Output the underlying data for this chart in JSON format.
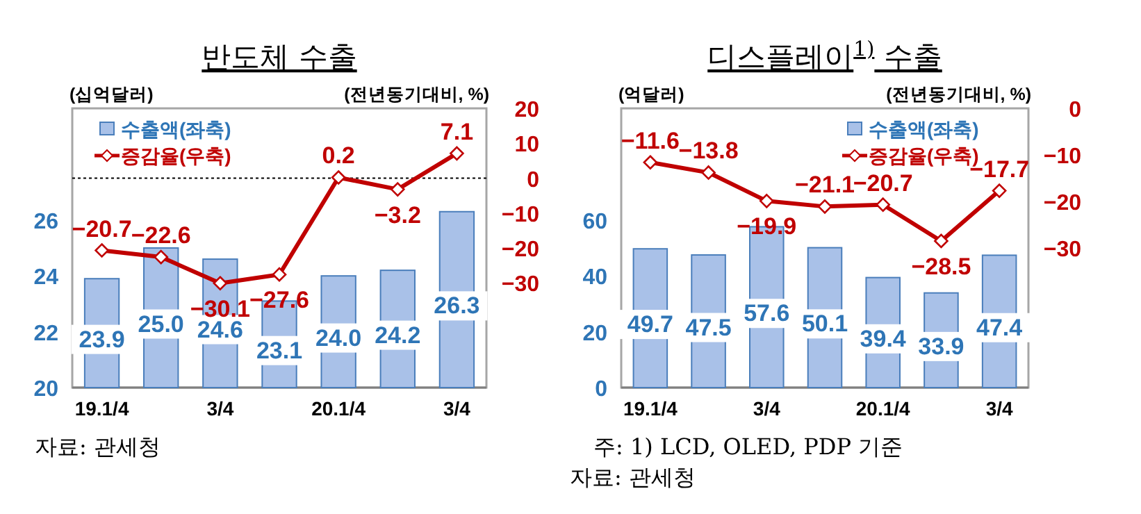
{
  "chart_data": [
    {
      "type": "bar",
      "title": "반도체 수출",
      "ylabel": "(십억달러)",
      "y2label": "(전년동기대비, %)",
      "categories": [
        "19.1/4",
        null,
        "3/4",
        null,
        "20.1/4",
        null,
        "3/4"
      ],
      "series": [
        {
          "name": "수출액(좌축)",
          "color": "#a9c1e8",
          "values": [
            23.9,
            25.0,
            24.6,
            23.1,
            24.0,
            24.2,
            26.3
          ],
          "value_labels": [
            "23.9",
            "25.0",
            "24.6",
            "23.1",
            "24.0",
            "24.2",
            "26.3"
          ]
        },
        {
          "name": "증감율(우축)",
          "type": "line",
          "axis": "y2",
          "color": "#c00000",
          "marker": "diamond",
          "values": [
            -20.7,
            -22.6,
            -30.1,
            -27.6,
            0.2,
            -3.2,
            7.1
          ]
        }
      ],
      "ylim": [
        20,
        30
      ],
      "yticks": [
        20,
        22,
        24,
        26
      ],
      "y2lim": [
        -60,
        20
      ],
      "y2ticks": [
        -30,
        -20,
        -10,
        0,
        10,
        20
      ],
      "ref_lines": [
        {
          "axis": "y2",
          "value": 0,
          "line_style": "dotted",
          "color": "#000000"
        }
      ],
      "data_labels": true,
      "legend": "top left",
      "grid": false,
      "annotations": [
        "자료: 관세청"
      ]
    },
    {
      "type": "bar",
      "title": "디스플레이$^{1)}$ 수출",
      "ylabel": "(억달러)",
      "y2label": "(전년동기대비, %)",
      "categories": [
        "19.1/4",
        null,
        "3/4",
        null,
        "20.1/4",
        null,
        "3/4"
      ],
      "series": [
        {
          "name": "수출액(좌축)",
          "color": "#a9c1e8",
          "values": [
            49.7,
            47.5,
            57.6,
            50.1,
            39.4,
            33.9,
            47.4
          ]
        },
        {
          "name": "증감율(우축)",
          "type": "line",
          "axis": "y2",
          "color": "#c00000",
          "marker": "diamond",
          "values": [
            -11.6,
            -13.8,
            -19.9,
            -21.1,
            -20.7,
            -28.5,
            -17.7
          ]
        }
      ],
      "ylim": [
        0,
        100
      ],
      "yticks": [
        0,
        20,
        40,
        60
      ],
      "y2lim": [
        -60,
        0
      ],
      "y2ticks": [
        -30,
        -20,
        -10,
        0
      ],
      "data_labels": true,
      "legend": "top right",
      "grid": false,
      "annotations": [
        "주: 1) LCD, OLED, PDP 기준",
        "자료: 관세청"
      ]
    }
  ]
}
